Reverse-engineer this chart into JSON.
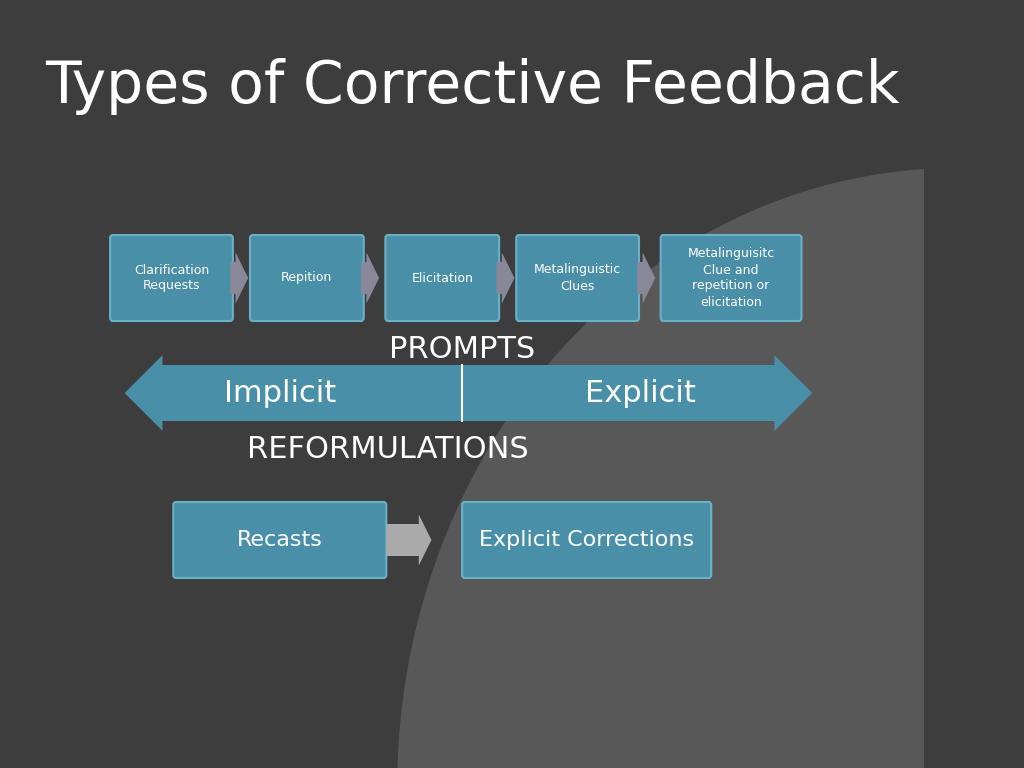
{
  "title": "Types of Corrective Feedback",
  "title_color": "#ffffff",
  "title_fontsize": 42,
  "background_color": "#3d3d3d",
  "box_fill_color": "#4a8fa8",
  "box_edge_color": "#6ab0c8",
  "box_text_color": "#ffffff",
  "top_boxes": [
    "Clarification\nRequests",
    "Repition",
    "Elicitation",
    "Metalinguistic\nClues",
    "Metalinguisitc\nClue and\nrepetition or\nelicitation"
  ],
  "arrow_color_small": "#888899",
  "double_arrow_color": "#4a8fa8",
  "implicit_label": "Implicit",
  "explicit_label": "Explicit",
  "prompts_label": "PROMPTS",
  "reformulations_label": "REFORMULATIONS",
  "bottom_boxes": [
    "Recasts",
    "Explicit Corrections"
  ],
  "label_color": "#ffffff",
  "label_fontsize": 22,
  "sublabel_fontsize": 22,
  "arc_color": "#555555"
}
